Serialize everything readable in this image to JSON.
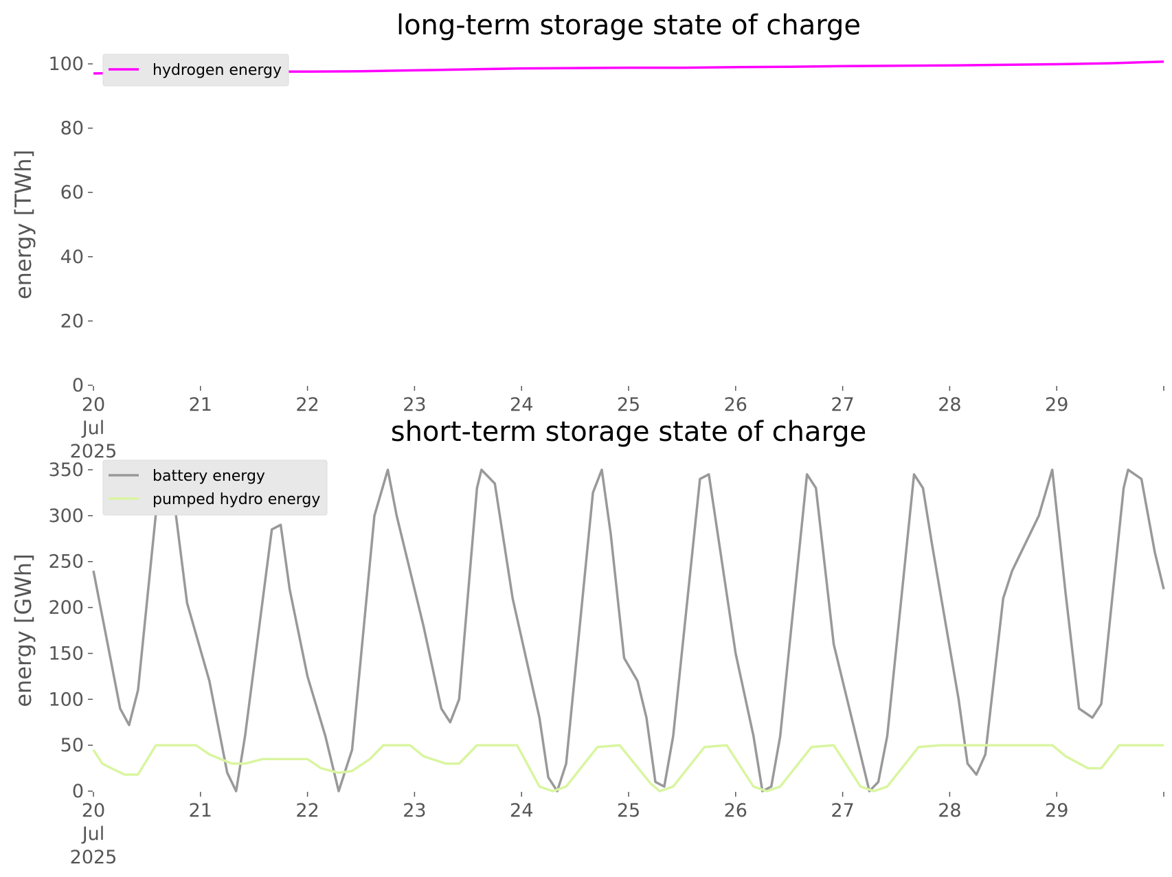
{
  "chart_data": [
    {
      "type": "line",
      "title": "long-term storage state of charge",
      "xlabel": "",
      "ylabel": "energy [TWh]",
      "x_ticks": [
        "20\nJul\n2025",
        "21",
        "22",
        "23",
        "24",
        "25",
        "26",
        "27",
        "28",
        "29"
      ],
      "x_range": [
        "2025-07-20T00:00",
        "2025-07-30T00:00"
      ],
      "ylim": [
        0,
        100
      ],
      "y_ticks": [
        0,
        20,
        40,
        60,
        80,
        100
      ],
      "grid": false,
      "legend": "top-left",
      "series": [
        {
          "name": "hydrogen energy",
          "color": "#ff00ff",
          "points": [
            [
              "2025-07-20T00:00",
              97.0
            ],
            [
              "2025-07-20T12:00",
              97.4
            ],
            [
              "2025-07-21T00:00",
              97.6
            ],
            [
              "2025-07-21T12:00",
              97.6
            ],
            [
              "2025-07-22T00:00",
              97.6
            ],
            [
              "2025-07-22T12:00",
              97.7
            ],
            [
              "2025-07-23T00:00",
              98.0
            ],
            [
              "2025-07-23T12:00",
              98.3
            ],
            [
              "2025-07-24T00:00",
              98.6
            ],
            [
              "2025-07-24T12:00",
              98.7
            ],
            [
              "2025-07-25T00:00",
              98.8
            ],
            [
              "2025-07-25T12:00",
              98.8
            ],
            [
              "2025-07-26T00:00",
              99.0
            ],
            [
              "2025-07-26T12:00",
              99.1
            ],
            [
              "2025-07-27T00:00",
              99.3
            ],
            [
              "2025-07-27T12:00",
              99.4
            ],
            [
              "2025-07-28T00:00",
              99.5
            ],
            [
              "2025-07-28T12:00",
              99.7
            ],
            [
              "2025-07-29T00:00",
              99.9
            ],
            [
              "2025-07-29T12:00",
              100.2
            ],
            [
              "2025-07-30T00:00",
              100.7
            ]
          ]
        }
      ]
    },
    {
      "type": "line",
      "title": "short-term storage state of charge",
      "xlabel": "",
      "ylabel": "energy [GWh]",
      "x_ticks": [
        "20\nJul\n2025",
        "21",
        "22",
        "23",
        "24",
        "25",
        "26",
        "27",
        "28",
        "29"
      ],
      "x_range": [
        "2025-07-20T00:00",
        "2025-07-30T00:00"
      ],
      "ylim": [
        0,
        350
      ],
      "y_ticks": [
        0,
        50,
        100,
        150,
        200,
        250,
        300,
        350
      ],
      "grid": false,
      "legend": "top-left",
      "series": [
        {
          "name": "battery energy",
          "color": "#999999",
          "points": [
            [
              "2025-07-20T00:00",
              240
            ],
            [
              "2025-07-20T03:00",
              165
            ],
            [
              "2025-07-20T06:00",
              90
            ],
            [
              "2025-07-20T08:00",
              72
            ],
            [
              "2025-07-20T10:00",
              110
            ],
            [
              "2025-07-20T15:00",
              350
            ],
            [
              "2025-07-20T16:00",
              350
            ],
            [
              "2025-07-20T18:00",
              320
            ],
            [
              "2025-07-20T21:00",
              205
            ],
            [
              "2025-07-21T02:00",
              120
            ],
            [
              "2025-07-21T06:00",
              20
            ],
            [
              "2025-07-21T08:00",
              0
            ],
            [
              "2025-07-21T10:00",
              60
            ],
            [
              "2025-07-21T16:00",
              285
            ],
            [
              "2025-07-21T18:00",
              290
            ],
            [
              "2025-07-21T20:00",
              220
            ],
            [
              "2025-07-22T00:00",
              125
            ],
            [
              "2025-07-22T04:00",
              60
            ],
            [
              "2025-07-22T07:00",
              0
            ],
            [
              "2025-07-22T10:00",
              45
            ],
            [
              "2025-07-22T15:00",
              300
            ],
            [
              "2025-07-22T18:00",
              350
            ],
            [
              "2025-07-22T20:00",
              300
            ],
            [
              "2025-07-23T02:00",
              180
            ],
            [
              "2025-07-23T06:00",
              90
            ],
            [
              "2025-07-23T08:00",
              75
            ],
            [
              "2025-07-23T10:00",
              100
            ],
            [
              "2025-07-23T14:00",
              330
            ],
            [
              "2025-07-23T15:00",
              350
            ],
            [
              "2025-07-23T18:00",
              335
            ],
            [
              "2025-07-23T22:00",
              210
            ],
            [
              "2025-07-24T04:00",
              80
            ],
            [
              "2025-07-24T06:00",
              15
            ],
            [
              "2025-07-24T08:00",
              0
            ],
            [
              "2025-07-24T10:00",
              30
            ],
            [
              "2025-07-24T16:00",
              325
            ],
            [
              "2025-07-24T18:00",
              350
            ],
            [
              "2025-07-24T20:00",
              280
            ],
            [
              "2025-07-24T23:00",
              145
            ],
            [
              "2025-07-25T02:00",
              120
            ],
            [
              "2025-07-25T04:00",
              80
            ],
            [
              "2025-07-25T06:00",
              10
            ],
            [
              "2025-07-25T08:00",
              5
            ],
            [
              "2025-07-25T10:00",
              60
            ],
            [
              "2025-07-25T16:00",
              340
            ],
            [
              "2025-07-25T18:00",
              345
            ],
            [
              "2025-07-25T20:00",
              280
            ],
            [
              "2025-07-26T00:00",
              150
            ],
            [
              "2025-07-26T04:00",
              60
            ],
            [
              "2025-07-26T06:00",
              0
            ],
            [
              "2025-07-26T08:00",
              5
            ],
            [
              "2025-07-26T10:00",
              60
            ],
            [
              "2025-07-26T16:00",
              345
            ],
            [
              "2025-07-26T18:00",
              330
            ],
            [
              "2025-07-26T22:00",
              160
            ],
            [
              "2025-07-27T04:00",
              40
            ],
            [
              "2025-07-27T06:00",
              0
            ],
            [
              "2025-07-27T08:00",
              10
            ],
            [
              "2025-07-27T10:00",
              60
            ],
            [
              "2025-07-27T16:00",
              345
            ],
            [
              "2025-07-27T18:00",
              330
            ],
            [
              "2025-07-27T20:00",
              270
            ],
            [
              "2025-07-28T02:00",
              100
            ],
            [
              "2025-07-28T04:00",
              30
            ],
            [
              "2025-07-28T06:00",
              18
            ],
            [
              "2025-07-28T08:00",
              40
            ],
            [
              "2025-07-28T12:00",
              210
            ],
            [
              "2025-07-28T14:00",
              240
            ],
            [
              "2025-07-28T16:00",
              260
            ],
            [
              "2025-07-28T20:00",
              300
            ],
            [
              "2025-07-28T23:00",
              350
            ],
            [
              "2025-07-29T02:00",
              215
            ],
            [
              "2025-07-29T05:00",
              90
            ],
            [
              "2025-07-29T08:00",
              80
            ],
            [
              "2025-07-29T10:00",
              95
            ],
            [
              "2025-07-29T15:00",
              330
            ],
            [
              "2025-07-29T16:00",
              350
            ],
            [
              "2025-07-29T19:00",
              340
            ],
            [
              "2025-07-29T22:00",
              260
            ],
            [
              "2025-07-30T00:00",
              220
            ]
          ]
        },
        {
          "name": "pumped hydro energy",
          "color": "#d9f5a0",
          "points": [
            [
              "2025-07-20T00:00",
              45
            ],
            [
              "2025-07-20T02:00",
              30
            ],
            [
              "2025-07-20T04:00",
              25
            ],
            [
              "2025-07-20T07:00",
              18
            ],
            [
              "2025-07-20T10:00",
              18
            ],
            [
              "2025-07-20T14:00",
              50
            ],
            [
              "2025-07-20T23:00",
              50
            ],
            [
              "2025-07-21T02:00",
              40
            ],
            [
              "2025-07-21T07:00",
              30
            ],
            [
              "2025-07-21T10:00",
              30
            ],
            [
              "2025-07-21T14:00",
              35
            ],
            [
              "2025-07-22T00:00",
              35
            ],
            [
              "2025-07-22T03:00",
              25
            ],
            [
              "2025-07-22T07:00",
              20
            ],
            [
              "2025-07-22T10:00",
              22
            ],
            [
              "2025-07-22T14:00",
              35
            ],
            [
              "2025-07-22T17:00",
              50
            ],
            [
              "2025-07-22T23:00",
              50
            ],
            [
              "2025-07-23T02:00",
              38
            ],
            [
              "2025-07-23T07:00",
              30
            ],
            [
              "2025-07-23T10:00",
              30
            ],
            [
              "2025-07-23T14:00",
              50
            ],
            [
              "2025-07-23T23:00",
              50
            ],
            [
              "2025-07-24T04:00",
              5
            ],
            [
              "2025-07-24T07:00",
              0
            ],
            [
              "2025-07-24T10:00",
              5
            ],
            [
              "2025-07-24T17:00",
              48
            ],
            [
              "2025-07-24T22:00",
              50
            ],
            [
              "2025-07-25T05:00",
              8
            ],
            [
              "2025-07-25T07:00",
              0
            ],
            [
              "2025-07-25T10:00",
              5
            ],
            [
              "2025-07-25T17:00",
              48
            ],
            [
              "2025-07-25T22:00",
              50
            ],
            [
              "2025-07-26T04:00",
              5
            ],
            [
              "2025-07-26T07:00",
              0
            ],
            [
              "2025-07-26T10:00",
              5
            ],
            [
              "2025-07-26T17:00",
              48
            ],
            [
              "2025-07-26T22:00",
              50
            ],
            [
              "2025-07-27T04:00",
              5
            ],
            [
              "2025-07-27T07:00",
              0
            ],
            [
              "2025-07-27T10:00",
              5
            ],
            [
              "2025-07-27T17:00",
              48
            ],
            [
              "2025-07-27T22:00",
              50
            ],
            [
              "2025-07-28T23:00",
              50
            ],
            [
              "2025-07-29T02:00",
              38
            ],
            [
              "2025-07-29T07:00",
              25
            ],
            [
              "2025-07-29T10:00",
              25
            ],
            [
              "2025-07-29T14:00",
              50
            ],
            [
              "2025-07-30T00:00",
              50
            ]
          ]
        }
      ]
    }
  ]
}
